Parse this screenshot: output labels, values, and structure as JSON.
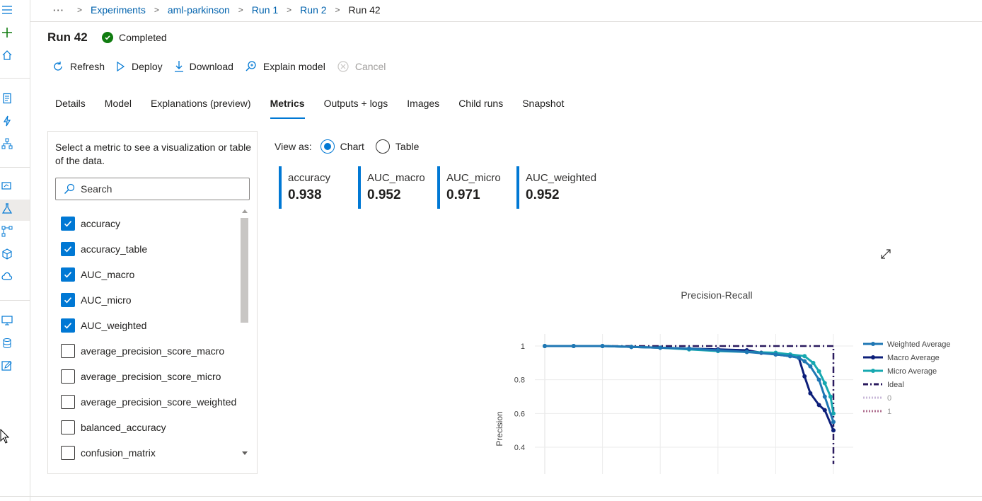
{
  "breadcrumb": {
    "more": "···",
    "items": [
      "Experiments",
      "aml-parkinson",
      "Run 1",
      "Run 2"
    ],
    "current": "Run 42"
  },
  "run": {
    "title": "Run 42",
    "status": "Completed"
  },
  "toolbar": {
    "refresh": "Refresh",
    "deploy": "Deploy",
    "download": "Download",
    "explain": "Explain model",
    "cancel": "Cancel"
  },
  "tabs": [
    "Details",
    "Model",
    "Explanations (preview)",
    "Metrics",
    "Outputs + logs",
    "Images",
    "Child runs",
    "Snapshot"
  ],
  "active_tab": "Metrics",
  "metric_panel": {
    "instructions": "Select a metric to see a visualization or table of the data.",
    "search_placeholder": "Search",
    "items": [
      {
        "label": "accuracy",
        "checked": true
      },
      {
        "label": "accuracy_table",
        "checked": true
      },
      {
        "label": "AUC_macro",
        "checked": true
      },
      {
        "label": "AUC_micro",
        "checked": true
      },
      {
        "label": "AUC_weighted",
        "checked": true
      },
      {
        "label": "average_precision_score_macro",
        "checked": false
      },
      {
        "label": "average_precision_score_micro",
        "checked": false
      },
      {
        "label": "average_precision_score_weighted",
        "checked": false
      },
      {
        "label": "balanced_accuracy",
        "checked": false
      },
      {
        "label": "confusion_matrix",
        "checked": false
      }
    ]
  },
  "view_as": {
    "label": "View as:",
    "chart": "Chart",
    "table": "Table",
    "selected": "Chart"
  },
  "cards": [
    {
      "name": "accuracy",
      "value": "0.938"
    },
    {
      "name": "AUC_macro",
      "value": "0.952"
    },
    {
      "name": "AUC_micro",
      "value": "0.971"
    },
    {
      "name": "AUC_weighted",
      "value": "0.952"
    }
  ],
  "colors": {
    "accent": "#0078d4",
    "success": "#107c10"
  },
  "chart_data": {
    "type": "line",
    "title": "Precision-Recall",
    "xlabel": "",
    "ylabel": "Precision",
    "ylim": [
      0.3,
      1.05
    ],
    "xlim": [
      0,
      1
    ],
    "yticks": [
      "1",
      "0.8",
      "0.6",
      "0.4"
    ],
    "legend_position": "right",
    "series": [
      {
        "name": "Weighted Average",
        "color": "#1f77b4",
        "style": "solid-marker",
        "x": [
          0,
          0.1,
          0.2,
          0.3,
          0.4,
          0.5,
          0.6,
          0.7,
          0.8,
          0.85,
          0.88,
          0.9,
          0.92,
          0.95,
          0.97,
          1.0
        ],
        "y": [
          1,
          1,
          1,
          0.995,
          0.99,
          0.985,
          0.975,
          0.965,
          0.95,
          0.94,
          0.93,
          0.91,
          0.88,
          0.8,
          0.7,
          0.55
        ]
      },
      {
        "name": "Macro Average",
        "color": "#0d1f7a",
        "style": "solid-marker",
        "x": [
          0,
          0.1,
          0.2,
          0.3,
          0.4,
          0.5,
          0.6,
          0.7,
          0.75,
          0.8,
          0.85,
          0.88,
          0.9,
          0.92,
          0.95,
          0.97,
          1.0
        ],
        "y": [
          1,
          1,
          1,
          0.995,
          0.99,
          0.985,
          0.98,
          0.975,
          0.96,
          0.95,
          0.94,
          0.93,
          0.82,
          0.72,
          0.65,
          0.62,
          0.5
        ]
      },
      {
        "name": "Micro Average",
        "color": "#17a8b0",
        "style": "solid-marker",
        "x": [
          0,
          0.1,
          0.2,
          0.3,
          0.4,
          0.5,
          0.6,
          0.7,
          0.8,
          0.85,
          0.9,
          0.93,
          0.95,
          0.97,
          0.99,
          1.0
        ],
        "y": [
          1,
          1,
          1,
          0.995,
          0.99,
          0.98,
          0.97,
          0.965,
          0.96,
          0.95,
          0.94,
          0.9,
          0.85,
          0.78,
          0.7,
          0.6
        ]
      },
      {
        "name": "Ideal",
        "color": "#2a1a5e",
        "style": "dashdot",
        "x": [
          0,
          1,
          1
        ],
        "y": [
          1,
          1,
          0.3
        ]
      },
      {
        "name": "0",
        "color": "#c8b8d8",
        "style": "dotted",
        "x": [],
        "y": []
      },
      {
        "name": "1",
        "color": "#b07090",
        "style": "dotted",
        "x": [],
        "y": []
      }
    ]
  }
}
